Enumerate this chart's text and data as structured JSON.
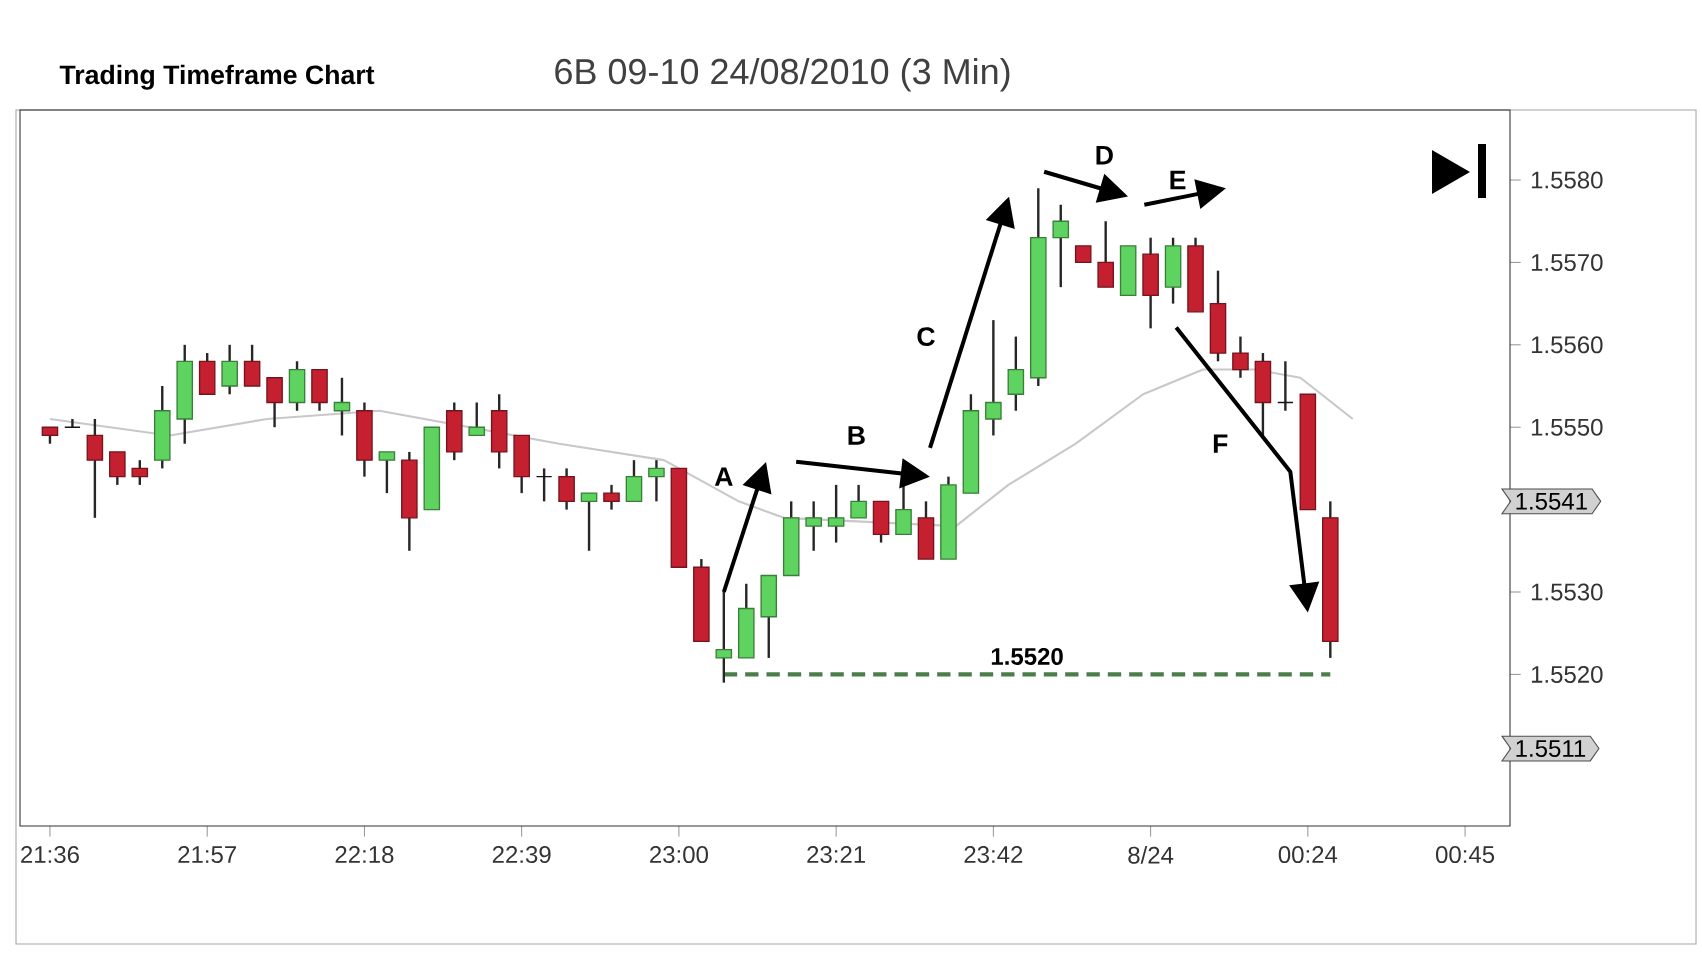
{
  "chart_data": {
    "type": "candlestick",
    "title": "Trading Timeframe Chart",
    "subtitle": "6B 09-10  24/08/2010 (3 Min)",
    "x": [
      "2010-08-23T21:36",
      "2010-08-23T21:39",
      "2010-08-23T21:42",
      "2010-08-23T21:45",
      "2010-08-23T21:48",
      "2010-08-23T21:51",
      "2010-08-23T21:54",
      "2010-08-23T21:57",
      "2010-08-23T22:00",
      "2010-08-23T22:03",
      "2010-08-23T22:06",
      "2010-08-23T22:09",
      "2010-08-23T22:12",
      "2010-08-23T22:15",
      "2010-08-23T22:18",
      "2010-08-23T22:21",
      "2010-08-23T22:24",
      "2010-08-23T22:27",
      "2010-08-23T22:30",
      "2010-08-23T22:33",
      "2010-08-23T22:36",
      "2010-08-23T22:39",
      "2010-08-23T22:42",
      "2010-08-23T22:45",
      "2010-08-23T22:48",
      "2010-08-23T22:51",
      "2010-08-23T22:54",
      "2010-08-23T22:57",
      "2010-08-23T23:00",
      "2010-08-23T23:03",
      "2010-08-23T23:06",
      "2010-08-23T23:09",
      "2010-08-23T23:12",
      "2010-08-23T23:15",
      "2010-08-23T23:18",
      "2010-08-23T23:21",
      "2010-08-23T23:24",
      "2010-08-23T23:27",
      "2010-08-23T23:30",
      "2010-08-23T23:33",
      "2010-08-23T23:36",
      "2010-08-23T23:39",
      "2010-08-23T23:42",
      "2010-08-23T23:45",
      "2010-08-23T23:48",
      "2010-08-23T23:51",
      "2010-08-23T23:54",
      "2010-08-23T23:57",
      "2010-08-24T00:00",
      "2010-08-24T00:03",
      "2010-08-24T00:06",
      "2010-08-24T00:09",
      "2010-08-24T00:12",
      "2010-08-24T00:15",
      "2010-08-24T00:18",
      "2010-08-24T00:21",
      "2010-08-24T00:24",
      "2010-08-24T00:27"
    ],
    "ohlc": [
      [
        1.555,
        1.555,
        1.5548,
        1.5549
      ],
      [
        1.555,
        1.5551,
        1.555,
        1.555
      ],
      [
        1.5549,
        1.5551,
        1.5539,
        1.5546
      ],
      [
        1.5547,
        1.5547,
        1.5543,
        1.5544
      ],
      [
        1.5545,
        1.5546,
        1.5543,
        1.5544
      ],
      [
        1.5546,
        1.5555,
        1.5545,
        1.5552
      ],
      [
        1.5551,
        1.556,
        1.5548,
        1.5558
      ],
      [
        1.5558,
        1.5559,
        1.5554,
        1.5554
      ],
      [
        1.5555,
        1.556,
        1.5554,
        1.5558
      ],
      [
        1.5558,
        1.556,
        1.5555,
        1.5555
      ],
      [
        1.5556,
        1.5556,
        1.555,
        1.5553
      ],
      [
        1.5553,
        1.5558,
        1.5552,
        1.5557
      ],
      [
        1.5557,
        1.5557,
        1.5552,
        1.5553
      ],
      [
        1.5552,
        1.5556,
        1.5549,
        1.5553
      ],
      [
        1.5552,
        1.5553,
        1.5544,
        1.5546
      ],
      [
        1.5546,
        1.5547,
        1.5542,
        1.5547
      ],
      [
        1.5546,
        1.5547,
        1.5535,
        1.5539
      ],
      [
        1.554,
        1.555,
        1.554,
        1.555
      ],
      [
        1.5552,
        1.5553,
        1.5546,
        1.5547
      ],
      [
        1.5549,
        1.5553,
        1.5549,
        1.555
      ],
      [
        1.5552,
        1.5554,
        1.5545,
        1.5547
      ],
      [
        1.5549,
        1.5549,
        1.5542,
        1.5544
      ],
      [
        1.5544,
        1.5545,
        1.5541,
        1.5544
      ],
      [
        1.5544,
        1.5545,
        1.554,
        1.5541
      ],
      [
        1.5541,
        1.5542,
        1.5535,
        1.5542
      ],
      [
        1.5542,
        1.5543,
        1.554,
        1.5541
      ],
      [
        1.5541,
        1.5546,
        1.5541,
        1.5544
      ],
      [
        1.5544,
        1.5546,
        1.5541,
        1.5545
      ],
      [
        1.5545,
        1.5545,
        1.5533,
        1.5533
      ],
      [
        1.5533,
        1.5534,
        1.5524,
        1.5524
      ],
      [
        1.5522,
        1.553,
        1.5519,
        1.5523
      ],
      [
        1.5522,
        1.5531,
        1.5522,
        1.5528
      ],
      [
        1.5527,
        1.5532,
        1.5522,
        1.5532
      ],
      [
        1.5532,
        1.5541,
        1.5532,
        1.5539
      ],
      [
        1.5538,
        1.5541,
        1.5535,
        1.5539
      ],
      [
        1.5538,
        1.5543,
        1.5536,
        1.5539
      ],
      [
        1.5539,
        1.5543,
        1.5539,
        1.5541
      ],
      [
        1.5541,
        1.5541,
        1.5536,
        1.5537
      ],
      [
        1.5537,
        1.5544,
        1.5537,
        1.554
      ],
      [
        1.5539,
        1.5541,
        1.5534,
        1.5534
      ],
      [
        1.5534,
        1.5544,
        1.5534,
        1.5543
      ],
      [
        1.5542,
        1.5554,
        1.5542,
        1.5552
      ],
      [
        1.5551,
        1.5563,
        1.5549,
        1.5553
      ],
      [
        1.5554,
        1.5561,
        1.5552,
        1.5557
      ],
      [
        1.5556,
        1.5579,
        1.5555,
        1.5573
      ],
      [
        1.5573,
        1.5577,
        1.5567,
        1.5575
      ],
      [
        1.5572,
        1.5572,
        1.557,
        1.557
      ],
      [
        1.557,
        1.5575,
        1.5567,
        1.5567
      ],
      [
        1.5566,
        1.5572,
        1.5566,
        1.5572
      ],
      [
        1.5571,
        1.5573,
        1.5562,
        1.5566
      ],
      [
        1.5567,
        1.5573,
        1.5565,
        1.5572
      ],
      [
        1.5572,
        1.5573,
        1.5564,
        1.5564
      ],
      [
        1.5565,
        1.5569,
        1.5558,
        1.5559
      ],
      [
        1.5559,
        1.5561,
        1.5556,
        1.5557
      ],
      [
        1.5558,
        1.5559,
        1.5549,
        1.5553
      ],
      [
        1.5553,
        1.5558,
        1.5552,
        1.5553
      ],
      [
        1.5554,
        1.5554,
        1.554,
        1.554
      ],
      [
        1.5539,
        1.5541,
        1.5522,
        1.5524
      ]
    ],
    "colors": [
      "#c42030",
      "#262626",
      "#c42030",
      "#c42030",
      "#c42030",
      "#5fd35f",
      "#5fd35f",
      "#c42030",
      "#5fd35f",
      "#c42030",
      "#c42030",
      "#5fd35f",
      "#c42030",
      "#5fd35f",
      "#c42030",
      "#5fd35f",
      "#c42030",
      "#5fd35f",
      "#c42030",
      "#5fd35f",
      "#c42030",
      "#c42030",
      "#262626",
      "#c42030",
      "#5fd35f",
      "#c42030",
      "#5fd35f",
      "#5fd35f",
      "#c42030",
      "#c42030",
      "#5fd35f",
      "#5fd35f",
      "#5fd35f",
      "#5fd35f",
      "#5fd35f",
      "#5fd35f",
      "#5fd35f",
      "#c42030",
      "#5fd35f",
      "#c42030",
      "#5fd35f",
      "#5fd35f",
      "#5fd35f",
      "#5fd35f",
      "#5fd35f",
      "#5fd35f",
      "#c42030",
      "#c42030",
      "#5fd35f",
      "#c42030",
      "#5fd35f",
      "#c42030",
      "#c42030",
      "#c42030",
      "#c42030",
      "#262626",
      "#c42030",
      "#c42030"
    ],
    "series": [
      {
        "type": "line",
        "color": "#c8c8c8",
        "x": [
          "2010-08-23T21:36",
          "2010-08-23T21:52",
          "2010-08-23T22:05",
          "2010-08-23T22:20",
          "2010-08-23T22:44",
          "2010-08-23T22:58",
          "2010-08-23T23:08",
          "2010-08-23T23:14",
          "2010-08-23T23:37",
          "2010-08-23T23:44",
          "2010-08-23T23:53",
          "2010-08-24T00:02",
          "2010-08-24T00:10",
          "2010-08-24T00:17",
          "2010-08-24T00:23",
          "2010-08-24T00:30"
        ],
        "values": [
          1.5551,
          1.5549,
          1.5551,
          1.5552,
          1.5548,
          1.5546,
          1.5541,
          1.5539,
          1.5538,
          1.5543,
          1.5548,
          1.5554,
          1.5557,
          1.5557,
          1.5556,
          1.5551
        ]
      }
    ],
    "xlim": [
      "2010-08-23T21:32",
      "2010-08-24T00:51"
    ],
    "ylim": [
      1.55016,
      1.55885
    ],
    "xticks": [
      {
        "value": "2010-08-23T21:36",
        "label": "21:36"
      },
      {
        "value": "2010-08-23T21:57",
        "label": "21:57"
      },
      {
        "value": "2010-08-23T22:18",
        "label": "22:18"
      },
      {
        "value": "2010-08-23T22:39",
        "label": "22:39"
      },
      {
        "value": "2010-08-23T23:00",
        "label": "23:00"
      },
      {
        "value": "2010-08-23T23:21",
        "label": "23:21"
      },
      {
        "value": "2010-08-23T23:42",
        "label": "23:42"
      },
      {
        "value": "2010-08-24T00:03",
        "label": "8/24"
      },
      {
        "value": "2010-08-24T00:24",
        "label": "00:24"
      },
      {
        "value": "2010-08-24T00:45",
        "label": "00:45"
      }
    ],
    "yticks": [
      {
        "value": 1.551,
        "label": null
      },
      {
        "value": 1.552,
        "label": "1.5520"
      },
      {
        "value": 1.553,
        "label": "1.5530"
      },
      {
        "value": 1.554,
        "label": null
      },
      {
        "value": 1.555,
        "label": "1.5550"
      },
      {
        "value": 1.556,
        "label": "1.5560"
      },
      {
        "value": 1.557,
        "label": "1.5570"
      },
      {
        "value": 1.558,
        "label": "1.5580"
      }
    ],
    "ref_lines": [
      {
        "axis": "y",
        "value": 1.552,
        "label": "1.5520",
        "color": "#4a7d4a",
        "line_style": "dashed"
      }
    ],
    "annotations": [
      {
        "text": "A",
        "x": "2010-08-23T23:06",
        "y": 1.553
      },
      "B",
      "C",
      "D",
      "E",
      "F",
      "1.5541",
      "1.5511"
    ]
  }
}
